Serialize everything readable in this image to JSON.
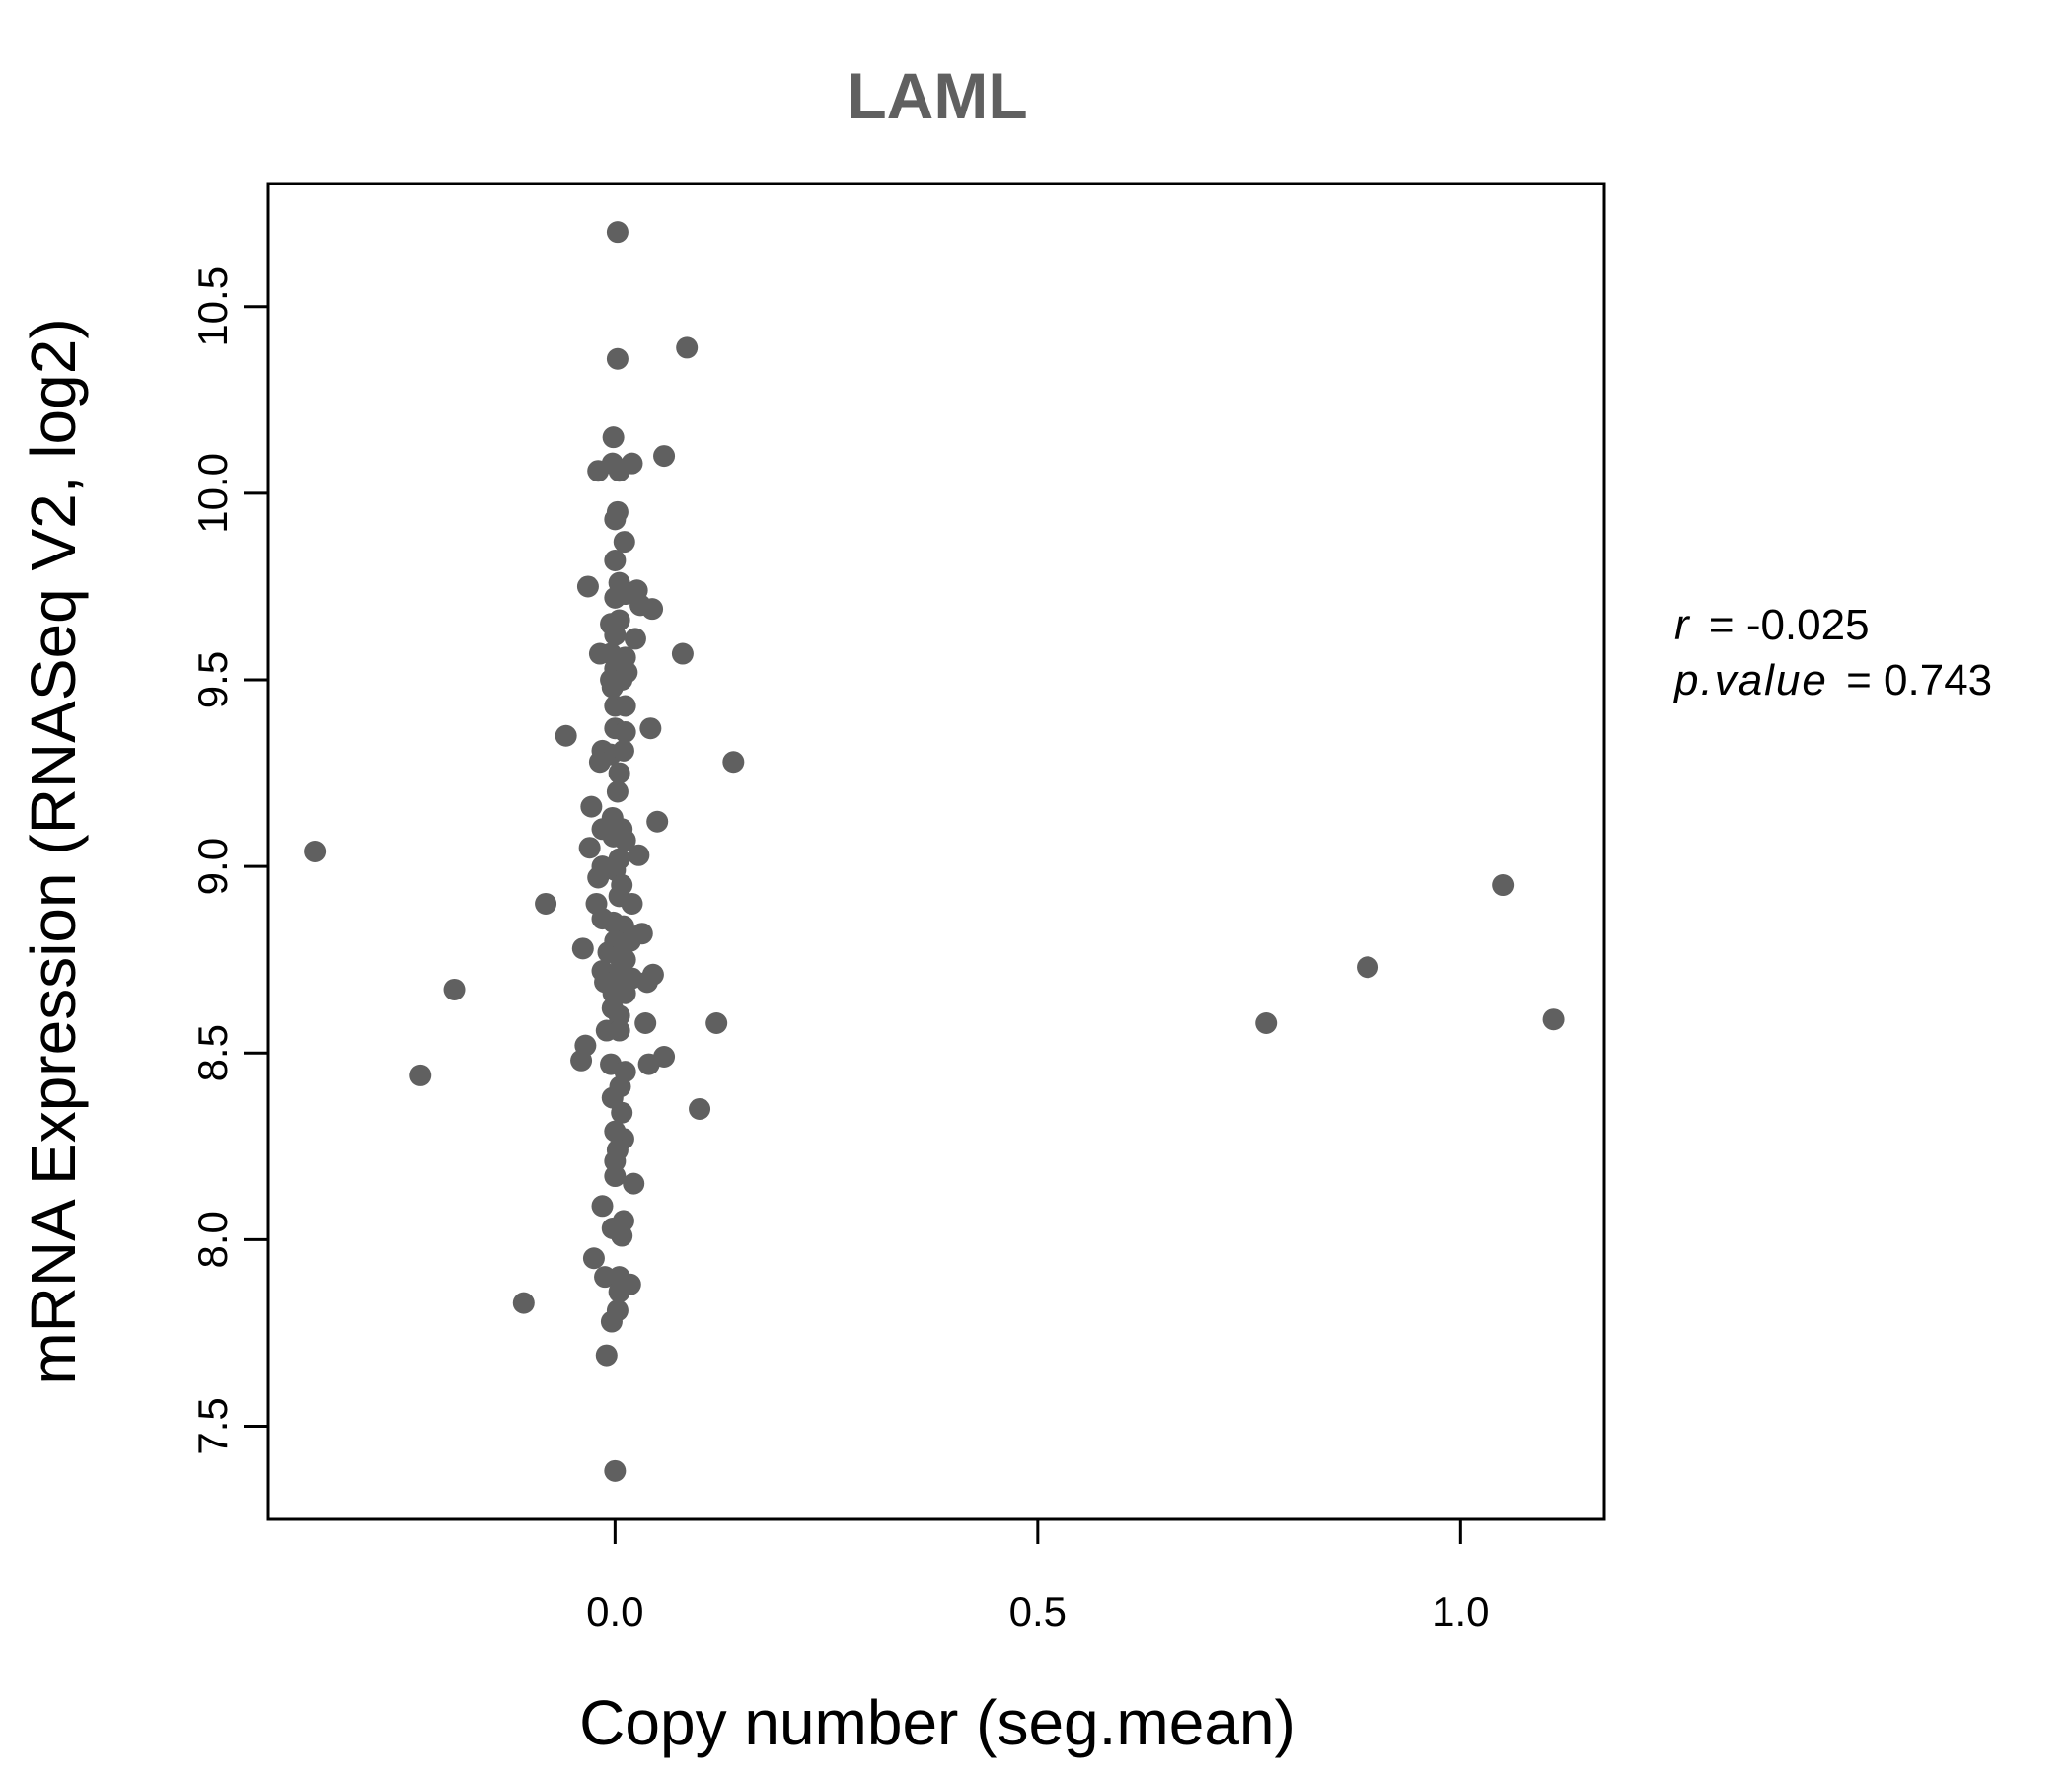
{
  "chart_data": {
    "type": "scatter",
    "title": "LAML",
    "xlabel": "Copy number (seg.mean)",
    "ylabel": "mRNA Expression (RNASeq V2, log2)",
    "xlim": [
      -0.41,
      1.17
    ],
    "ylim": [
      7.25,
      10.83
    ],
    "x_ticks": [
      "0.0",
      "0.5",
      "1.0"
    ],
    "y_ticks": [
      "7.5",
      "8.0",
      "8.5",
      "9.0",
      "9.5",
      "10.0",
      "10.5"
    ],
    "point_color": "#606060",
    "grid": false,
    "annotations": {
      "r_label": "r",
      "r_value": "-0.025",
      "p_label": "p.value",
      "p_value": "0.743"
    },
    "points": [
      {
        "x": 0.003,
        "y": 10.7
      },
      {
        "x": 0.003,
        "y": 10.36
      },
      {
        "x": 0.085,
        "y": 10.39
      },
      {
        "x": -0.002,
        "y": 10.15
      },
      {
        "x": -0.02,
        "y": 10.06
      },
      {
        "x": -0.003,
        "y": 10.08
      },
      {
        "x": 0.005,
        "y": 10.06
      },
      {
        "x": 0.02,
        "y": 10.08
      },
      {
        "x": 0.058,
        "y": 10.1
      },
      {
        "x": 0.003,
        "y": 9.95
      },
      {
        "x": 0.0,
        "y": 9.93
      },
      {
        "x": 0.011,
        "y": 9.87
      },
      {
        "x": 0.0,
        "y": 9.82
      },
      {
        "x": -0.032,
        "y": 9.75
      },
      {
        "x": 0.005,
        "y": 9.76
      },
      {
        "x": 0.0,
        "y": 9.72
      },
      {
        "x": 0.012,
        "y": 9.73
      },
      {
        "x": 0.026,
        "y": 9.74
      },
      {
        "x": 0.03,
        "y": 9.7
      },
      {
        "x": 0.044,
        "y": 9.69
      },
      {
        "x": -0.005,
        "y": 9.65
      },
      {
        "x": 0.005,
        "y": 9.66
      },
      {
        "x": 0.0,
        "y": 9.62
      },
      {
        "x": 0.024,
        "y": 9.61
      },
      {
        "x": -0.018,
        "y": 9.57
      },
      {
        "x": -0.005,
        "y": 9.57
      },
      {
        "x": 0.012,
        "y": 9.56
      },
      {
        "x": 0.08,
        "y": 9.57
      },
      {
        "x": 0.0,
        "y": 9.53
      },
      {
        "x": 0.014,
        "y": 9.52
      },
      {
        "x": -0.005,
        "y": 9.5
      },
      {
        "x": 0.008,
        "y": 9.5
      },
      {
        "x": -0.003,
        "y": 9.48
      },
      {
        "x": 0.0,
        "y": 9.43
      },
      {
        "x": 0.012,
        "y": 9.43
      },
      {
        "x": -0.058,
        "y": 9.35
      },
      {
        "x": 0.0,
        "y": 9.37
      },
      {
        "x": 0.012,
        "y": 9.36
      },
      {
        "x": 0.042,
        "y": 9.37
      },
      {
        "x": -0.015,
        "y": 9.31
      },
      {
        "x": -0.005,
        "y": 9.3
      },
      {
        "x": 0.01,
        "y": 9.31
      },
      {
        "x": -0.018,
        "y": 9.28
      },
      {
        "x": 0.14,
        "y": 9.28
      },
      {
        "x": 0.005,
        "y": 9.25
      },
      {
        "x": 0.003,
        "y": 9.2
      },
      {
        "x": -0.028,
        "y": 9.16
      },
      {
        "x": -0.003,
        "y": 9.13
      },
      {
        "x": 0.05,
        "y": 9.12
      },
      {
        "x": -0.015,
        "y": 9.1
      },
      {
        "x": 0.008,
        "y": 9.1
      },
      {
        "x": -0.002,
        "y": 9.08
      },
      {
        "x": 0.012,
        "y": 9.07
      },
      {
        "x": -0.03,
        "y": 9.05
      },
      {
        "x": -0.355,
        "y": 9.04
      },
      {
        "x": 0.005,
        "y": 9.02
      },
      {
        "x": 0.028,
        "y": 9.03
      },
      {
        "x": -0.015,
        "y": 9.0
      },
      {
        "x": 0.0,
        "y": 8.99
      },
      {
        "x": -0.02,
        "y": 8.97
      },
      {
        "x": 0.008,
        "y": 8.95
      },
      {
        "x": 0.005,
        "y": 8.92
      },
      {
        "x": -0.082,
        "y": 8.9
      },
      {
        "x": -0.022,
        "y": 8.9
      },
      {
        "x": 0.02,
        "y": 8.9
      },
      {
        "x": -0.015,
        "y": 8.86
      },
      {
        "x": -0.002,
        "y": 8.85
      },
      {
        "x": 0.01,
        "y": 8.84
      },
      {
        "x": 0.032,
        "y": 8.82
      },
      {
        "x": 0.0,
        "y": 8.8
      },
      {
        "x": 0.018,
        "y": 8.8
      },
      {
        "x": -0.038,
        "y": 8.78
      },
      {
        "x": -0.008,
        "y": 8.77
      },
      {
        "x": 0.004,
        "y": 8.76
      },
      {
        "x": 0.012,
        "y": 8.75
      },
      {
        "x": -0.015,
        "y": 8.72
      },
      {
        "x": 0.005,
        "y": 8.72
      },
      {
        "x": 0.045,
        "y": 8.71
      },
      {
        "x": -0.005,
        "y": 8.7
      },
      {
        "x": 0.02,
        "y": 8.7
      },
      {
        "x": -0.012,
        "y": 8.69
      },
      {
        "x": 0.0,
        "y": 8.68
      },
      {
        "x": 0.038,
        "y": 8.69
      },
      {
        "x": -0.19,
        "y": 8.67
      },
      {
        "x": -0.002,
        "y": 8.66
      },
      {
        "x": 0.012,
        "y": 8.66
      },
      {
        "x": -0.003,
        "y": 8.62
      },
      {
        "x": 0.005,
        "y": 8.6
      },
      {
        "x": 0.036,
        "y": 8.58
      },
      {
        "x": 0.12,
        "y": 8.58
      },
      {
        "x": 0.77,
        "y": 8.58
      },
      {
        "x": 1.11,
        "y": 8.59
      },
      {
        "x": -0.01,
        "y": 8.56
      },
      {
        "x": 0.005,
        "y": 8.56
      },
      {
        "x": 0.89,
        "y": 8.73
      },
      {
        "x": 1.05,
        "y": 8.95
      },
      {
        "x": -0.035,
        "y": 8.52
      },
      {
        "x": -0.04,
        "y": 8.48
      },
      {
        "x": -0.005,
        "y": 8.47
      },
      {
        "x": 0.058,
        "y": 8.49
      },
      {
        "x": 0.04,
        "y": 8.47
      },
      {
        "x": 0.012,
        "y": 8.45
      },
      {
        "x": -0.23,
        "y": 8.44
      },
      {
        "x": 0.006,
        "y": 8.41
      },
      {
        "x": -0.003,
        "y": 8.38
      },
      {
        "x": 0.1,
        "y": 8.35
      },
      {
        "x": 0.008,
        "y": 8.34
      },
      {
        "x": 0.0,
        "y": 8.29
      },
      {
        "x": 0.01,
        "y": 8.27
      },
      {
        "x": 0.003,
        "y": 8.24
      },
      {
        "x": 0.0,
        "y": 8.21
      },
      {
        "x": 0.0,
        "y": 8.17
      },
      {
        "x": 0.022,
        "y": 8.15
      },
      {
        "x": -0.015,
        "y": 8.09
      },
      {
        "x": 0.01,
        "y": 8.05
      },
      {
        "x": -0.003,
        "y": 8.03
      },
      {
        "x": 0.008,
        "y": 8.01
      },
      {
        "x": -0.025,
        "y": 7.95
      },
      {
        "x": -0.012,
        "y": 7.9
      },
      {
        "x": 0.005,
        "y": 7.9
      },
      {
        "x": 0.018,
        "y": 7.88
      },
      {
        "x": 0.005,
        "y": 7.86
      },
      {
        "x": -0.108,
        "y": 7.83
      },
      {
        "x": 0.003,
        "y": 7.81
      },
      {
        "x": -0.004,
        "y": 7.78
      },
      {
        "x": -0.01,
        "y": 7.69
      },
      {
        "x": 0.0,
        "y": 7.38
      }
    ]
  }
}
